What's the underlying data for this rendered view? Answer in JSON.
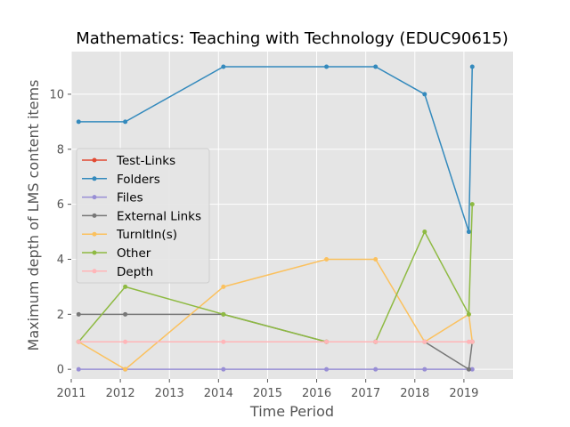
{
  "chart_data": {
    "type": "line",
    "title": "Mathematics: Teaching with Technology (EDUC90615)",
    "xlabel": "Time Period",
    "ylabel": "Maximum depth of LMS content items",
    "xlim": [
      2011,
      2020
    ],
    "ylim": [
      -0.35,
      11.55
    ],
    "x_ticks": [
      "2011",
      "2012",
      "2013",
      "2014",
      "2015",
      "2016",
      "2017",
      "2018",
      "2019"
    ],
    "y_ticks": [
      "0",
      "2",
      "4",
      "6",
      "8",
      "10"
    ],
    "grid": true,
    "legend_position": "center-left",
    "x": [
      2011.15,
      2012.1,
      2014.1,
      2016.2,
      2017.2,
      2018.2,
      2019.1,
      2019.17
    ],
    "series": [
      {
        "name": "Test-Links",
        "color": "#E24A33",
        "values": [
          null,
          null,
          null,
          null,
          null,
          null,
          null,
          null
        ]
      },
      {
        "name": "Folders",
        "color": "#348ABD",
        "values": [
          9,
          9,
          11,
          11,
          11,
          10,
          5,
          11
        ]
      },
      {
        "name": "Files",
        "color": "#988ED5",
        "values": [
          0,
          0,
          0,
          0,
          0,
          0,
          0,
          0
        ]
      },
      {
        "name": "External Links",
        "color": "#777777",
        "values": [
          2,
          2,
          2,
          1,
          1,
          1,
          0,
          1
        ]
      },
      {
        "name": "TurnItIn(s)",
        "color": "#FBC15E",
        "values": [
          1,
          0,
          3,
          4,
          4,
          1,
          2,
          1
        ]
      },
      {
        "name": "Other",
        "color": "#8EBA42",
        "values": [
          1,
          3,
          2,
          1,
          1,
          5,
          2,
          6
        ]
      },
      {
        "name": "Depth",
        "color": "#FFB5B8",
        "values": [
          1,
          1,
          1,
          1,
          1,
          1,
          1,
          1
        ]
      }
    ]
  }
}
